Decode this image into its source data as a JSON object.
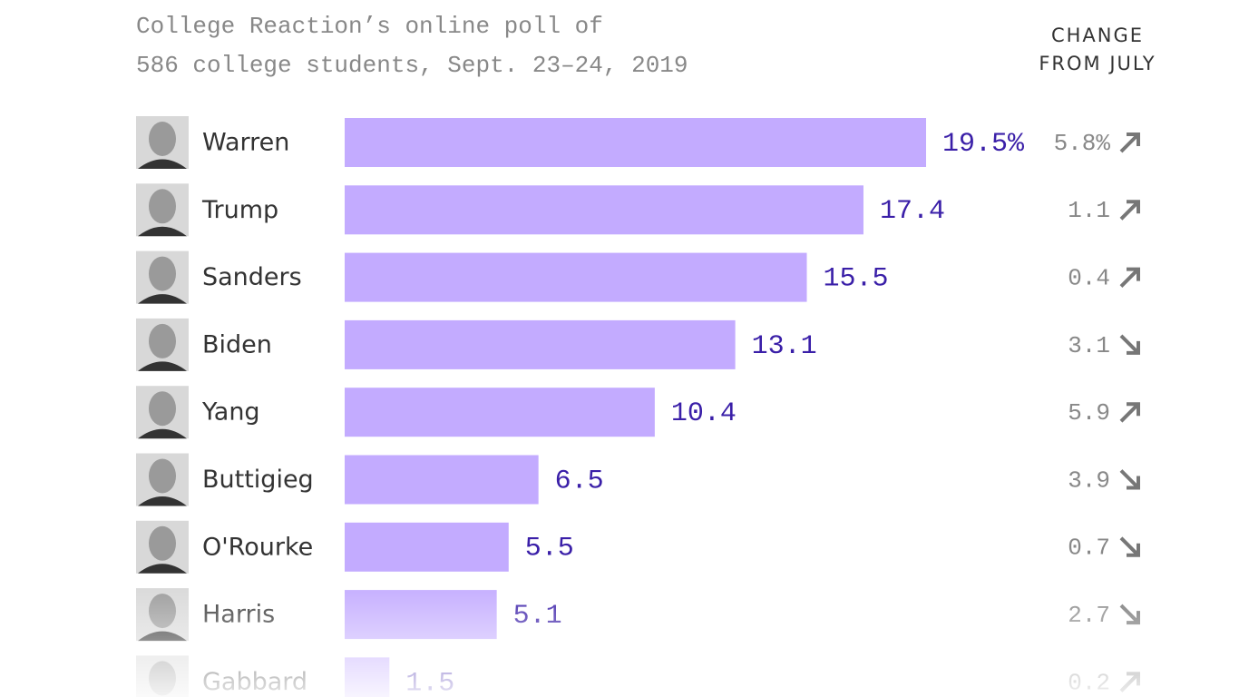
{
  "chart_data": {
    "type": "bar",
    "title_lines": [
      "College Reaction’s online poll of",
      "586 college students, Sept. 23–24, 2019"
    ],
    "change_header": "CHANGE FROM JULY",
    "categories": [
      "Warren",
      "Trump",
      "Sanders",
      "Biden",
      "Yang",
      "Buttigieg",
      "O'Rourke",
      "Harris",
      "Gabbard"
    ],
    "values": [
      19.5,
      17.4,
      15.5,
      13.1,
      10.4,
      6.5,
      5.5,
      5.1,
      1.5
    ],
    "value_labels": [
      "19.5%",
      "17.4",
      "15.5",
      "13.1",
      "10.4",
      "6.5",
      "5.5",
      "5.1",
      "1.5"
    ],
    "change": [
      5.8,
      1.1,
      0.4,
      3.1,
      5.9,
      3.9,
      0.7,
      2.7,
      0.2
    ],
    "change_labels": [
      "5.8%",
      "1.1",
      "0.4",
      "3.1",
      "5.9",
      "3.9",
      "0.7",
      "2.7",
      "0.2"
    ],
    "change_direction": [
      "up",
      "up",
      "up",
      "down",
      "up",
      "down",
      "down",
      "down",
      "up"
    ],
    "color": "#c3abff"
  }
}
